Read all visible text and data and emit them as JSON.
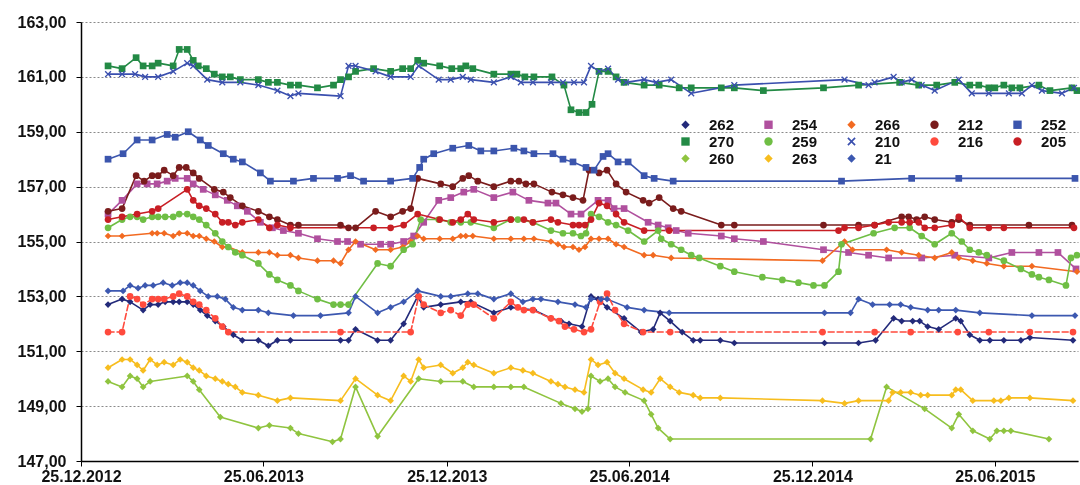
{
  "chart_data": {
    "type": "line",
    "xlim": [
      "2012-12-25",
      "2015-09-16"
    ],
    "ylim": [
      147,
      163
    ],
    "xticks": [
      {
        "value": "2012-12-25",
        "label": "25.12.2012"
      },
      {
        "value": "2013-06-25",
        "label": "25.06.2013"
      },
      {
        "value": "2013-12-25",
        "label": "25.12.2013"
      },
      {
        "value": "2014-06-25",
        "label": "25.06.2014"
      },
      {
        "value": "2014-12-25",
        "label": "25.12.2014"
      },
      {
        "value": "2015-06-25",
        "label": "25.06.2015"
      }
    ],
    "yticks": [
      {
        "value": 147,
        "label": "147,00"
      },
      {
        "value": 149,
        "label": "149,00"
      },
      {
        "value": 151,
        "label": "151,00"
      },
      {
        "value": 153,
        "label": "153,00"
      },
      {
        "value": 155,
        "label": "155,00"
      },
      {
        "value": 157,
        "label": "157,00"
      },
      {
        "value": 159,
        "label": "159,00"
      },
      {
        "value": 161,
        "label": "161,00"
      },
      {
        "value": 163,
        "label": "163,00"
      }
    ],
    "grid": "y",
    "legend": "top right",
    "series": [
      {
        "name": "262",
        "color": "#232a7a",
        "marker": "diamond",
        "x": [
          "2013-01-21",
          "2013-02-04",
          "2013-02-12",
          "2013-02-25",
          "2013-03-04",
          "2013-03-12",
          "2013-03-19",
          "2013-03-27",
          "2013-04-02",
          "2013-04-10",
          "2013-04-16",
          "2013-04-23",
          "2013-04-30",
          "2013-05-08",
          "2013-05-16",
          "2013-05-26",
          "2013-06-04",
          "2013-06-20",
          "2013-06-30",
          "2013-07-09",
          "2013-07-22",
          "2013-09-10",
          "2013-09-18",
          "2013-09-25",
          "2013-10-17",
          "2013-10-30",
          "2013-11-12",
          "2013-11-26",
          "2013-12-02",
          "2013-12-19",
          "2014-01-08",
          "2014-01-18",
          "2014-02-10",
          "2014-02-27",
          "2014-03-22",
          "2014-04-08",
          "2014-04-18",
          "2014-04-26",
          "2014-05-09",
          "2014-05-18",
          "2014-05-25",
          "2014-06-03",
          "2014-06-20",
          "2014-07-07",
          "2014-07-19",
          "2014-07-26",
          "2014-08-05",
          "2014-08-17",
          "2014-08-28",
          "2014-09-04",
          "2014-09-24",
          "2014-10-08",
          "2015-01-06",
          "2015-02-09",
          "2015-02-26",
          "2015-03-16",
          "2015-03-24",
          "2015-04-04",
          "2015-04-11",
          "2015-04-19",
          "2015-04-30",
          "2015-05-17",
          "2015-05-22",
          "2015-05-31",
          "2015-06-10",
          "2015-06-20",
          "2015-07-04",
          "2015-07-21",
          "2015-07-30",
          "2015-09-11"
        ],
        "values": [
          152.7,
          152.9,
          152.8,
          152.5,
          152.7,
          152.7,
          152.8,
          152.8,
          152.8,
          152.8,
          152.7,
          152.5,
          152.3,
          152.1,
          151.9,
          151.6,
          151.4,
          151.4,
          151.2,
          151.4,
          151.4,
          151.4,
          151.4,
          151.8,
          151.4,
          151.4,
          152.0,
          153.0,
          152.6,
          152.7,
          152.8,
          152.8,
          152.4,
          152.6,
          152.5,
          152.2,
          152.1,
          152.0,
          151.9,
          153.0,
          152.9,
          152.6,
          152.2,
          151.7,
          151.8,
          152.4,
          152.1,
          151.7,
          151.4,
          151.4,
          151.4,
          151.3,
          151.3,
          151.3,
          151.4,
          152.2,
          152.1,
          152.1,
          152.1,
          151.9,
          151.8,
          152.2,
          152.1,
          151.6,
          151.4,
          151.4,
          151.4,
          151.4,
          151.5,
          151.4
        ]
      },
      {
        "name": "254",
        "color": "#b0509e",
        "marker": "square",
        "x": [
          "2013-01-21",
          "2013-02-04",
          "2013-02-19",
          "2013-03-01",
          "2013-03-11",
          "2013-03-21",
          "2013-03-29",
          "2013-04-10",
          "2013-04-16",
          "2013-04-26",
          "2013-05-08",
          "2013-05-20",
          "2013-05-30",
          "2013-06-09",
          "2013-06-22",
          "2013-07-04",
          "2013-07-15",
          "2013-07-30",
          "2013-08-18",
          "2013-09-07",
          "2013-09-17",
          "2013-09-30",
          "2013-10-20",
          "2013-10-30",
          "2013-11-12",
          "2013-11-22",
          "2013-12-02",
          "2013-12-17",
          "2013-12-29",
          "2014-01-11",
          "2014-01-21",
          "2014-02-10",
          "2014-03-01",
          "2014-03-17",
          "2014-04-05",
          "2014-04-13",
          "2014-04-28",
          "2014-05-08",
          "2014-05-25",
          "2014-06-04",
          "2014-06-10",
          "2014-06-20",
          "2014-07-14",
          "2014-07-24",
          "2014-08-03",
          "2014-08-11",
          "2014-08-23",
          "2014-09-25",
          "2014-10-08",
          "2014-11-06",
          "2015-01-05",
          "2015-01-30",
          "2015-02-19",
          "2015-03-11",
          "2015-04-13",
          "2015-05-16",
          "2015-06-19",
          "2015-07-12",
          "2015-08-08",
          "2015-08-27",
          "2015-09-14"
        ],
        "values": [
          156.0,
          156.5,
          157.1,
          157.1,
          157.1,
          157.2,
          157.3,
          157.3,
          157.1,
          156.9,
          156.7,
          156.5,
          156.3,
          156.1,
          155.7,
          155.5,
          155.4,
          155.3,
          155.1,
          155.0,
          155.0,
          154.9,
          154.9,
          154.9,
          155.0,
          155.2,
          155.7,
          156.5,
          156.6,
          156.8,
          156.9,
          156.6,
          156.8,
          156.5,
          156.4,
          156.4,
          156.0,
          156.0,
          156.5,
          156.5,
          156.2,
          156.2,
          155.7,
          155.6,
          155.5,
          155.4,
          155.3,
          155.2,
          155.1,
          155.0,
          154.7,
          154.6,
          154.5,
          154.4,
          154.4,
          154.5,
          154.4,
          154.6,
          154.6,
          154.6,
          154.0
        ]
      },
      {
        "name": "266",
        "color": "#f26a21",
        "marker": "diamond",
        "x": [
          "2013-01-21",
          "2013-02-04",
          "2013-03-06",
          "2013-03-11",
          "2013-03-18",
          "2013-03-27",
          "2013-04-02",
          "2013-04-10",
          "2013-04-16",
          "2013-04-22",
          "2013-04-29",
          "2013-05-07",
          "2013-05-15",
          "2013-05-21",
          "2013-06-04",
          "2013-06-20",
          "2013-07-01",
          "2013-07-09",
          "2013-07-22",
          "2013-07-30",
          "2013-08-18",
          "2013-09-03",
          "2013-09-10",
          "2013-09-18",
          "2013-09-25",
          "2013-10-15",
          "2013-10-30",
          "2013-11-11",
          "2013-11-19",
          "2013-11-26",
          "2013-12-02",
          "2013-12-18",
          "2013-12-31",
          "2014-01-08",
          "2014-01-13",
          "2014-01-20",
          "2014-02-10",
          "2014-02-27",
          "2014-03-12",
          "2014-03-22",
          "2014-04-08",
          "2014-04-15",
          "2014-04-21",
          "2014-04-30",
          "2014-05-06",
          "2014-05-12",
          "2014-05-18",
          "2014-05-26",
          "2014-06-04",
          "2014-06-12",
          "2014-06-20",
          "2014-07-10",
          "2014-07-19",
          "2014-08-06",
          "2015-01-04",
          "2015-01-26",
          "2015-02-03",
          "2015-03-09",
          "2015-03-24",
          "2015-04-10",
          "2015-04-26",
          "2015-05-13",
          "2015-05-20",
          "2015-06-03",
          "2015-06-17",
          "2015-07-04",
          "2015-08-01",
          "2015-09-15"
        ],
        "values": [
          155.2,
          155.2,
          155.3,
          155.3,
          155.3,
          155.2,
          155.3,
          155.3,
          155.2,
          155.2,
          155.1,
          155.0,
          154.8,
          154.8,
          154.6,
          154.6,
          154.6,
          154.5,
          154.5,
          154.4,
          154.3,
          154.3,
          154.2,
          154.7,
          155.0,
          154.7,
          154.7,
          154.8,
          155.0,
          155.2,
          155.1,
          155.1,
          155.1,
          155.2,
          155.2,
          155.2,
          155.1,
          155.1,
          155.1,
          155.1,
          155.0,
          154.9,
          154.8,
          154.8,
          154.7,
          154.8,
          155.1,
          155.1,
          155.1,
          154.9,
          154.8,
          154.5,
          154.5,
          154.4,
          154.3,
          155.0,
          154.7,
          154.7,
          154.6,
          154.5,
          154.4,
          154.6,
          154.4,
          154.3,
          154.2,
          154.1,
          154.1,
          153.9
        ]
      },
      {
        "name": "212",
        "color": "#7a1c1c",
        "marker": "circle",
        "x": [
          "2013-01-21",
          "2013-02-04",
          "2013-02-18",
          "2013-02-26",
          "2013-03-06",
          "2013-03-12",
          "2013-03-18",
          "2013-03-27",
          "2013-04-02",
          "2013-04-09",
          "2013-04-16",
          "2013-04-22",
          "2013-05-07",
          "2013-05-16",
          "2013-05-23",
          "2013-06-04",
          "2013-06-20",
          "2013-07-01",
          "2013-07-09",
          "2013-07-22",
          "2013-07-30",
          "2013-09-10",
          "2013-09-18",
          "2013-09-25",
          "2013-10-15",
          "2013-10-30",
          "2013-11-11",
          "2013-11-19",
          "2013-11-26",
          "2013-12-19",
          "2013-12-31",
          "2014-01-10",
          "2014-01-16",
          "2014-01-25",
          "2014-02-10",
          "2014-02-27",
          "2014-03-07",
          "2014-03-14",
          "2014-03-22",
          "2014-04-09",
          "2014-04-20",
          "2014-04-30",
          "2014-05-10",
          "2014-05-16",
          "2014-05-26",
          "2014-06-03",
          "2014-06-12",
          "2014-06-22",
          "2014-07-09",
          "2014-07-15",
          "2014-07-25",
          "2014-08-08",
          "2014-08-16",
          "2014-09-25",
          "2014-10-08",
          "2015-01-05",
          "2015-02-09",
          "2015-02-25",
          "2015-03-24",
          "2015-03-31",
          "2015-04-08",
          "2015-04-16",
          "2015-04-26",
          "2015-05-13",
          "2015-05-20",
          "2015-05-31",
          "2015-07-29",
          "2015-09-10"
        ],
        "values": [
          156.1,
          156.2,
          157.4,
          157.2,
          157.4,
          157.4,
          157.6,
          157.4,
          157.7,
          157.7,
          157.5,
          157.3,
          156.9,
          156.8,
          156.6,
          156.3,
          156.1,
          155.9,
          155.8,
          155.6,
          155.6,
          155.6,
          155.5,
          155.5,
          156.1,
          155.9,
          156.1,
          156.2,
          157.3,
          157.1,
          157.0,
          157.3,
          157.4,
          157.2,
          157.0,
          157.2,
          157.2,
          157.1,
          157.1,
          156.8,
          156.7,
          156.6,
          156.5,
          157.6,
          157.5,
          157.6,
          157.1,
          156.8,
          156.5,
          156.4,
          156.6,
          156.2,
          156.1,
          155.6,
          155.6,
          155.6,
          155.6,
          155.6,
          155.9,
          155.9,
          155.8,
          155.9,
          155.8,
          155.7,
          155.8,
          155.6,
          155.6,
          155.6
        ]
      },
      {
        "name": "252",
        "color": "#3b55ad",
        "marker": "square",
        "x": [
          "2013-01-21",
          "2013-02-05",
          "2013-02-19",
          "2013-03-06",
          "2013-03-21",
          "2013-03-29",
          "2013-04-11",
          "2013-04-23",
          "2013-05-01",
          "2013-05-16",
          "2013-05-26",
          "2013-06-04",
          "2013-06-22",
          "2013-07-02",
          "2013-07-25",
          "2013-08-14",
          "2013-09-07",
          "2013-09-20",
          "2013-10-03",
          "2013-10-30",
          "2013-11-21",
          "2013-11-28",
          "2013-12-02",
          "2013-12-12",
          "2013-12-31",
          "2014-01-16",
          "2014-01-28",
          "2014-02-10",
          "2014-03-02",
          "2014-03-12",
          "2014-03-22",
          "2014-04-10",
          "2014-04-20",
          "2014-04-30",
          "2014-05-13",
          "2014-05-21",
          "2014-05-30",
          "2014-06-04",
          "2014-06-14",
          "2014-06-24",
          "2014-07-10",
          "2014-07-20",
          "2014-08-08",
          "2015-01-23",
          "2015-04-03",
          "2015-05-20",
          "2015-09-13"
        ],
        "values": [
          158.0,
          158.2,
          158.7,
          158.7,
          158.9,
          158.8,
          159.0,
          158.7,
          158.5,
          158.2,
          158.0,
          157.9,
          157.5,
          157.2,
          157.2,
          157.3,
          157.3,
          157.4,
          157.2,
          157.2,
          157.3,
          157.7,
          158.0,
          158.2,
          158.4,
          158.5,
          158.3,
          158.3,
          158.4,
          158.3,
          158.2,
          158.2,
          158.0,
          157.9,
          157.7,
          157.6,
          158.1,
          158.2,
          157.9,
          157.9,
          157.4,
          157.3,
          157.2,
          157.2,
          157.3,
          157.3,
          157.3
        ]
      },
      {
        "name": "270",
        "color": "#238a45",
        "marker": "square",
        "x": [
          "2013-01-21",
          "2013-02-04",
          "2013-02-18",
          "2013-02-25",
          "2013-03-06",
          "2013-03-12",
          "2013-03-27",
          "2013-04-02",
          "2013-04-10",
          "2013-04-16",
          "2013-04-21",
          "2013-04-29",
          "2013-05-07",
          "2013-05-15",
          "2013-05-23",
          "2013-06-02",
          "2013-06-20",
          "2013-06-30",
          "2013-07-09",
          "2013-07-22",
          "2013-07-30",
          "2013-08-18",
          "2013-09-03",
          "2013-09-10",
          "2013-09-18",
          "2013-09-25",
          "2013-10-13",
          "2013-10-30",
          "2013-11-11",
          "2013-11-19",
          "2013-11-26",
          "2013-12-02",
          "2013-12-18",
          "2013-12-30",
          "2014-01-08",
          "2014-01-13",
          "2014-01-20",
          "2014-02-10",
          "2014-02-27",
          "2014-03-05",
          "2014-03-13",
          "2014-03-22",
          "2014-04-09",
          "2014-04-21",
          "2014-04-28",
          "2014-05-06",
          "2014-05-13",
          "2014-05-19",
          "2014-05-26",
          "2014-06-04",
          "2014-06-12",
          "2014-06-20",
          "2014-07-10",
          "2014-07-25",
          "2014-08-14",
          "2014-08-26",
          "2014-09-25",
          "2014-10-08",
          "2014-11-06",
          "2015-01-05",
          "2015-02-09",
          "2015-03-22",
          "2015-04-10",
          "2015-04-28",
          "2015-05-16",
          "2015-05-31",
          "2015-06-09",
          "2015-06-19",
          "2015-06-25",
          "2015-07-04",
          "2015-07-12",
          "2015-07-20",
          "2015-08-08",
          "2015-08-19",
          "2015-09-10",
          "2015-09-15"
        ],
        "values": [
          161.4,
          161.3,
          161.7,
          161.4,
          161.4,
          161.5,
          161.4,
          162.0,
          162.0,
          161.6,
          161.4,
          161.3,
          161.1,
          161.0,
          161.0,
          160.9,
          160.9,
          160.8,
          160.8,
          160.7,
          160.7,
          160.6,
          160.7,
          160.9,
          161.0,
          161.2,
          161.3,
          161.2,
          161.3,
          161.3,
          161.6,
          161.5,
          161.4,
          161.3,
          161.3,
          161.4,
          161.3,
          161.1,
          161.1,
          161.1,
          161.0,
          161.0,
          161.0,
          160.7,
          159.8,
          159.7,
          159.7,
          160.0,
          161.2,
          161.2,
          161.0,
          160.8,
          160.7,
          160.7,
          160.6,
          160.6,
          160.6,
          160.6,
          160.5,
          160.6,
          160.7,
          160.8,
          160.7,
          160.7,
          160.8,
          160.7,
          160.7,
          160.6,
          160.6,
          160.7,
          160.6,
          160.6,
          160.7,
          160.5,
          160.6,
          160.5
        ]
      },
      {
        "name": "259",
        "color": "#6fbe44",
        "marker": "circle",
        "x": [
          "2013-01-21",
          "2013-02-04",
          "2013-02-12",
          "2013-02-19",
          "2013-02-25",
          "2013-03-06",
          "2013-03-12",
          "2013-03-19",
          "2013-03-27",
          "2013-04-02",
          "2013-04-10",
          "2013-04-16",
          "2013-04-22",
          "2013-04-29",
          "2013-05-08",
          "2013-05-15",
          "2013-05-21",
          "2013-05-28",
          "2013-06-04",
          "2013-06-20",
          "2013-07-01",
          "2013-07-09",
          "2013-07-22",
          "2013-07-30",
          "2013-08-18",
          "2013-09-03",
          "2013-09-10",
          "2013-09-18",
          "2013-10-17",
          "2013-10-30",
          "2013-11-12",
          "2013-11-21",
          "2013-11-29",
          "2013-12-17",
          "2013-12-29",
          "2014-01-08",
          "2014-01-18",
          "2014-02-10",
          "2014-02-27",
          "2014-03-06",
          "2014-03-21",
          "2014-04-08",
          "2014-04-20",
          "2014-04-30",
          "2014-05-08",
          "2014-05-13",
          "2014-05-18",
          "2014-05-26",
          "2014-06-04",
          "2014-06-12",
          "2014-06-24",
          "2014-07-10",
          "2014-07-24",
          "2014-07-27",
          "2014-08-06",
          "2014-08-16",
          "2014-08-26",
          "2014-09-03",
          "2014-09-24",
          "2014-10-08",
          "2014-11-05",
          "2014-11-25",
          "2014-12-11",
          "2014-12-26",
          "2015-01-06",
          "2015-01-20",
          "2015-01-23",
          "2015-02-24",
          "2015-03-17",
          "2015-04-01",
          "2015-04-13",
          "2015-04-26",
          "2015-05-13",
          "2015-05-23",
          "2015-05-31",
          "2015-06-09",
          "2015-06-17",
          "2015-07-04",
          "2015-07-21",
          "2015-08-01",
          "2015-08-08",
          "2015-08-18",
          "2015-09-04",
          "2015-09-09",
          "2015-09-15"
        ],
        "values": [
          155.5,
          155.8,
          155.9,
          155.9,
          155.8,
          155.9,
          155.9,
          155.9,
          155.9,
          156.0,
          156.0,
          155.9,
          155.8,
          155.6,
          155.3,
          155.0,
          154.8,
          154.6,
          154.5,
          154.2,
          153.8,
          153.6,
          153.4,
          153.2,
          152.9,
          152.7,
          152.7,
          152.7,
          154.2,
          154.1,
          154.7,
          154.9,
          155.8,
          155.8,
          155.7,
          155.7,
          155.7,
          155.5,
          155.8,
          155.8,
          155.7,
          155.4,
          155.3,
          155.3,
          155.2,
          155.3,
          156.0,
          155.9,
          155.7,
          155.6,
          155.4,
          155.0,
          155.4,
          155.1,
          154.9,
          154.7,
          154.5,
          154.4,
          154.1,
          153.9,
          153.7,
          153.6,
          153.5,
          153.4,
          153.4,
          153.9,
          154.9,
          155.3,
          155.5,
          155.5,
          155.2,
          154.9,
          155.3,
          155.0,
          154.7,
          154.6,
          154.5,
          154.3,
          154.0,
          153.8,
          153.7,
          153.6,
          153.4,
          154.4,
          154.5
        ]
      },
      {
        "name": "210",
        "color": "#3a4fae",
        "marker": "cross",
        "x": [
          "2013-01-21",
          "2013-02-04",
          "2013-02-17",
          "2013-02-27",
          "2013-03-12",
          "2013-03-27",
          "2013-04-10",
          "2013-04-16",
          "2013-04-30",
          "2013-05-15",
          "2013-06-02",
          "2013-06-20",
          "2013-07-09",
          "2013-07-22",
          "2013-07-30",
          "2013-09-10",
          "2013-09-18",
          "2013-09-25",
          "2013-10-15",
          "2013-10-30",
          "2013-11-19",
          "2013-11-27",
          "2013-12-17",
          "2013-12-29",
          "2014-01-10",
          "2014-01-18",
          "2014-02-10",
          "2014-02-27",
          "2014-03-09",
          "2014-03-21",
          "2014-04-08",
          "2014-04-20",
          "2014-05-01",
          "2014-05-11",
          "2014-05-18",
          "2014-05-26",
          "2014-06-04",
          "2014-06-14",
          "2014-06-22",
          "2014-07-10",
          "2014-07-22",
          "2014-08-06",
          "2014-08-26",
          "2014-10-08",
          "2015-01-26",
          "2015-02-19",
          "2015-02-25",
          "2015-03-16",
          "2015-03-24",
          "2015-04-03",
          "2015-04-13",
          "2015-04-26",
          "2015-05-20",
          "2015-06-02",
          "2015-06-19",
          "2015-07-09",
          "2015-07-22",
          "2015-08-01",
          "2015-08-11",
          "2015-08-31",
          "2015-09-12"
        ],
        "values": [
          161.1,
          161.1,
          161.1,
          161.0,
          161.0,
          161.2,
          161.5,
          161.4,
          160.9,
          160.8,
          160.8,
          160.7,
          160.5,
          160.3,
          160.4,
          160.3,
          161.4,
          161.4,
          161.2,
          161.0,
          161.0,
          161.4,
          160.9,
          160.9,
          161.0,
          160.9,
          160.8,
          161.0,
          160.8,
          160.8,
          160.8,
          160.8,
          160.8,
          160.8,
          161.4,
          161.2,
          161.3,
          160.9,
          160.8,
          160.9,
          160.8,
          160.9,
          160.4,
          160.7,
          160.9,
          160.7,
          160.8,
          161.0,
          160.8,
          160.9,
          160.7,
          160.5,
          160.9,
          160.4,
          160.4,
          160.4,
          160.4,
          160.7,
          160.5,
          160.4,
          160.6
        ]
      },
      {
        "name": "216",
        "color": "#ff4a3d",
        "marker": "circle",
        "line_style": "dashed",
        "x": [
          "2013-01-21",
          "2013-02-04",
          "2013-02-12",
          "2013-02-19",
          "2013-02-25",
          "2013-03-06",
          "2013-03-12",
          "2013-03-18",
          "2013-03-27",
          "2013-04-02",
          "2013-04-10",
          "2013-04-16",
          "2013-04-22",
          "2013-04-29",
          "2013-05-08",
          "2013-05-15",
          "2013-05-21",
          "2013-09-10",
          "2013-11-19",
          "2013-11-27",
          "2013-12-02",
          "2013-12-19",
          "2013-12-29",
          "2014-01-08",
          "2014-01-15",
          "2014-01-21",
          "2014-02-10",
          "2014-02-27",
          "2014-03-06",
          "2014-03-12",
          "2014-03-21",
          "2014-04-08",
          "2014-04-16",
          "2014-04-22",
          "2014-05-01",
          "2014-05-11",
          "2014-05-18",
          "2014-05-27",
          "2014-06-03",
          "2014-06-11",
          "2014-06-20",
          "2014-07-09",
          "2014-08-05",
          "2015-01-04",
          "2015-02-25",
          "2015-04-02",
          "2015-05-19",
          "2015-06-19",
          "2015-07-30",
          "2015-09-11"
        ],
        "values": [
          151.7,
          151.7,
          153.0,
          152.9,
          152.7,
          152.9,
          152.9,
          152.9,
          153.0,
          153.1,
          153.0,
          152.8,
          152.7,
          152.5,
          152.2,
          151.9,
          151.7,
          151.7,
          151.7,
          153.0,
          152.7,
          152.4,
          152.5,
          152.3,
          152.7,
          152.7,
          152.2,
          152.8,
          152.6,
          152.5,
          152.5,
          152.2,
          152.1,
          151.9,
          151.8,
          151.7,
          151.8,
          152.8,
          153.1,
          152.5,
          152.0,
          151.7,
          151.7,
          151.7,
          151.7,
          151.7,
          151.7,
          151.7,
          151.7,
          151.7
        ]
      },
      {
        "name": "205",
        "color": "#c81e24",
        "marker": "circle",
        "x": [
          "2013-01-21",
          "2013-02-04",
          "2013-02-19",
          "2013-03-06",
          "2013-03-12",
          "2013-04-10",
          "2013-04-16",
          "2013-04-22",
          "2013-04-29",
          "2013-05-08",
          "2013-05-15",
          "2013-05-21",
          "2013-05-28",
          "2013-06-04",
          "2013-06-20",
          "2013-07-01",
          "2013-07-09",
          "2013-07-22",
          "2013-10-13",
          "2013-10-30",
          "2013-11-12",
          "2013-11-26",
          "2013-12-18",
          "2013-12-31",
          "2014-01-08",
          "2014-01-15",
          "2014-01-21",
          "2014-02-10",
          "2014-02-27",
          "2014-03-12",
          "2014-03-21",
          "2014-04-08",
          "2014-04-15",
          "2014-04-30",
          "2014-05-06",
          "2014-05-12",
          "2014-05-18",
          "2014-05-26",
          "2014-06-03",
          "2014-06-12",
          "2014-06-20",
          "2014-07-10",
          "2014-08-04",
          "2015-01-20",
          "2015-01-26",
          "2015-02-09",
          "2015-02-25",
          "2015-03-11",
          "2015-03-24",
          "2015-04-01",
          "2015-04-10",
          "2015-04-16",
          "2015-04-26",
          "2015-05-13",
          "2015-05-20",
          "2015-05-31",
          "2015-06-19",
          "2015-07-04",
          "2015-09-12"
        ],
        "values": [
          155.8,
          155.9,
          156.0,
          156.1,
          156.2,
          156.9,
          156.5,
          156.3,
          156.2,
          156.0,
          155.7,
          155.7,
          155.6,
          155.7,
          155.8,
          155.5,
          155.6,
          155.5,
          155.5,
          155.5,
          155.6,
          156.0,
          155.8,
          155.7,
          155.8,
          156.0,
          155.8,
          155.7,
          155.8,
          155.8,
          155.7,
          155.8,
          155.7,
          155.6,
          155.6,
          155.6,
          155.8,
          156.4,
          156.3,
          156.0,
          155.7,
          155.4,
          155.4,
          155.4,
          155.5,
          155.5,
          155.6,
          155.7,
          155.7,
          155.7,
          155.7,
          155.5,
          155.5,
          155.6,
          155.9,
          155.5,
          155.5,
          155.5,
          155.5
        ]
      },
      {
        "name": "260",
        "color": "#8fc43f",
        "marker": "diamond",
        "x": [
          "2013-01-21",
          "2013-02-04",
          "2013-02-12",
          "2013-02-19",
          "2013-02-25",
          "2013-03-04",
          "2013-04-10",
          "2013-04-16",
          "2013-04-22",
          "2013-05-13",
          "2013-06-20",
          "2013-07-01",
          "2013-07-22",
          "2013-07-30",
          "2013-09-02",
          "2013-09-10",
          "2013-09-25",
          "2013-10-17",
          "2013-11-27",
          "2013-12-19",
          "2014-01-10",
          "2014-01-21",
          "2014-02-10",
          "2014-02-27",
          "2014-03-12",
          "2014-04-18",
          "2014-05-02",
          "2014-05-09",
          "2014-05-15",
          "2014-05-18",
          "2014-05-27",
          "2014-06-04",
          "2014-06-11",
          "2014-06-21",
          "2014-07-10",
          "2014-07-17",
          "2014-07-24",
          "2014-08-05",
          "2015-02-21",
          "2015-03-09",
          "2015-04-16",
          "2015-05-13",
          "2015-05-20",
          "2015-06-03",
          "2015-06-20",
          "2015-06-27",
          "2015-07-04",
          "2015-07-11",
          "2015-08-18"
        ],
        "values": [
          149.9,
          149.7,
          150.1,
          150.0,
          149.7,
          149.9,
          150.1,
          149.9,
          149.6,
          148.6,
          148.2,
          148.3,
          148.2,
          148.0,
          147.7,
          147.8,
          149.7,
          147.9,
          150.0,
          149.9,
          149.9,
          149.7,
          149.7,
          149.7,
          149.7,
          149.1,
          148.9,
          148.8,
          148.9,
          150.1,
          149.9,
          150.0,
          149.7,
          149.5,
          149.2,
          148.7,
          148.2,
          147.8,
          147.8,
          149.7,
          148.9,
          148.2,
          148.7,
          148.1,
          147.8,
          148.1,
          148.1,
          148.1,
          147.8
        ]
      },
      {
        "name": "263",
        "color": "#f7bd1e",
        "marker": "diamond",
        "x": [
          "2013-01-21",
          "2013-02-04",
          "2013-02-12",
          "2013-02-19",
          "2013-02-25",
          "2013-03-04",
          "2013-03-11",
          "2013-03-18",
          "2013-03-27",
          "2013-04-03",
          "2013-04-10",
          "2013-04-16",
          "2013-04-22",
          "2013-04-29",
          "2013-05-08",
          "2013-05-15",
          "2013-05-21",
          "2013-05-28",
          "2013-06-04",
          "2013-06-20",
          "2013-07-09",
          "2013-07-22",
          "2013-09-10",
          "2013-09-25",
          "2013-10-17",
          "2013-10-30",
          "2013-11-12",
          "2013-11-19",
          "2013-11-27",
          "2013-12-02",
          "2013-12-19",
          "2013-12-31",
          "2014-01-10",
          "2014-01-15",
          "2014-01-21",
          "2014-02-10",
          "2014-02-27",
          "2014-03-11",
          "2014-03-21",
          "2014-04-08",
          "2014-04-15",
          "2014-04-22",
          "2014-05-02",
          "2014-05-11",
          "2014-05-18",
          "2014-05-25",
          "2014-06-03",
          "2014-06-11",
          "2014-06-20",
          "2014-07-09",
          "2014-07-17",
          "2014-07-26",
          "2014-08-05",
          "2014-08-14",
          "2014-08-28",
          "2014-09-04",
          "2014-09-24",
          "2015-01-04",
          "2015-01-26",
          "2015-02-09",
          "2015-03-11",
          "2015-03-15",
          "2015-03-23",
          "2015-04-02",
          "2015-04-12",
          "2015-04-19",
          "2015-05-13",
          "2015-05-17",
          "2015-05-22",
          "2015-06-03",
          "2015-06-24",
          "2015-07-01",
          "2015-07-09",
          "2015-07-30",
          "2015-09-11"
        ],
        "values": [
          150.4,
          150.7,
          150.7,
          150.5,
          150.3,
          150.7,
          150.5,
          150.6,
          150.5,
          150.7,
          150.6,
          150.4,
          150.3,
          150.1,
          150.0,
          149.9,
          149.8,
          149.7,
          149.5,
          149.4,
          149.2,
          149.3,
          149.2,
          150.0,
          149.4,
          149.2,
          150.1,
          149.9,
          150.7,
          150.4,
          150.5,
          150.2,
          150.4,
          150.6,
          150.5,
          150.2,
          150.4,
          150.3,
          150.2,
          149.9,
          149.8,
          149.7,
          149.6,
          149.5,
          150.7,
          150.5,
          150.6,
          150.2,
          150.0,
          149.6,
          149.5,
          150.0,
          149.7,
          149.5,
          149.4,
          149.3,
          149.3,
          149.2,
          149.1,
          149.2,
          149.2,
          149.5,
          149.5,
          149.5,
          149.4,
          149.4,
          149.4,
          149.6,
          149.6,
          149.2,
          149.2,
          149.2,
          149.3,
          149.3,
          149.2
        ]
      },
      {
        "name": "21",
        "color": "#3c58b0",
        "marker": "diamond",
        "x": [
          "2013-01-21",
          "2013-02-05",
          "2013-02-12",
          "2013-02-20",
          "2013-02-27",
          "2013-03-07",
          "2013-03-17",
          "2013-03-26",
          "2013-04-03",
          "2013-04-10",
          "2013-04-16",
          "2013-04-23",
          "2013-05-01",
          "2013-05-10",
          "2013-05-18",
          "2013-05-26",
          "2013-06-04",
          "2013-06-20",
          "2013-06-30",
          "2013-07-25",
          "2013-08-21",
          "2013-09-18",
          "2013-09-25",
          "2013-10-17",
          "2013-10-30",
          "2013-11-12",
          "2013-11-26",
          "2013-12-19",
          "2013-12-29",
          "2014-01-15",
          "2014-01-25",
          "2014-02-10",
          "2014-02-27",
          "2014-03-11",
          "2014-03-21",
          "2014-03-29",
          "2014-04-15",
          "2014-05-02",
          "2014-05-13",
          "2014-05-18",
          "2014-05-28",
          "2014-06-03",
          "2014-06-23",
          "2014-07-10",
          "2014-08-04",
          "2015-01-06",
          "2015-02-01",
          "2015-02-09",
          "2015-02-23",
          "2015-03-12",
          "2015-03-23",
          "2015-04-02",
          "2015-04-19",
          "2015-04-30",
          "2015-05-17",
          "2015-06-10",
          "2015-08-01",
          "2015-09-13"
        ],
        "values": [
          153.2,
          153.2,
          153.4,
          153.3,
          153.4,
          153.4,
          153.5,
          153.4,
          153.5,
          153.5,
          153.4,
          153.2,
          153.0,
          153.0,
          152.9,
          152.6,
          152.5,
          152.5,
          152.4,
          152.3,
          152.3,
          152.4,
          153.0,
          152.4,
          152.6,
          152.8,
          153.2,
          153.0,
          153.0,
          153.1,
          153.1,
          152.9,
          153.1,
          152.8,
          152.9,
          152.9,
          152.8,
          152.7,
          152.6,
          152.9,
          152.9,
          152.9,
          152.6,
          152.5,
          152.4,
          152.4,
          152.4,
          152.9,
          152.7,
          152.7,
          152.7,
          152.6,
          152.5,
          152.5,
          152.5,
          152.4,
          152.3,
          152.3
        ]
      }
    ]
  }
}
